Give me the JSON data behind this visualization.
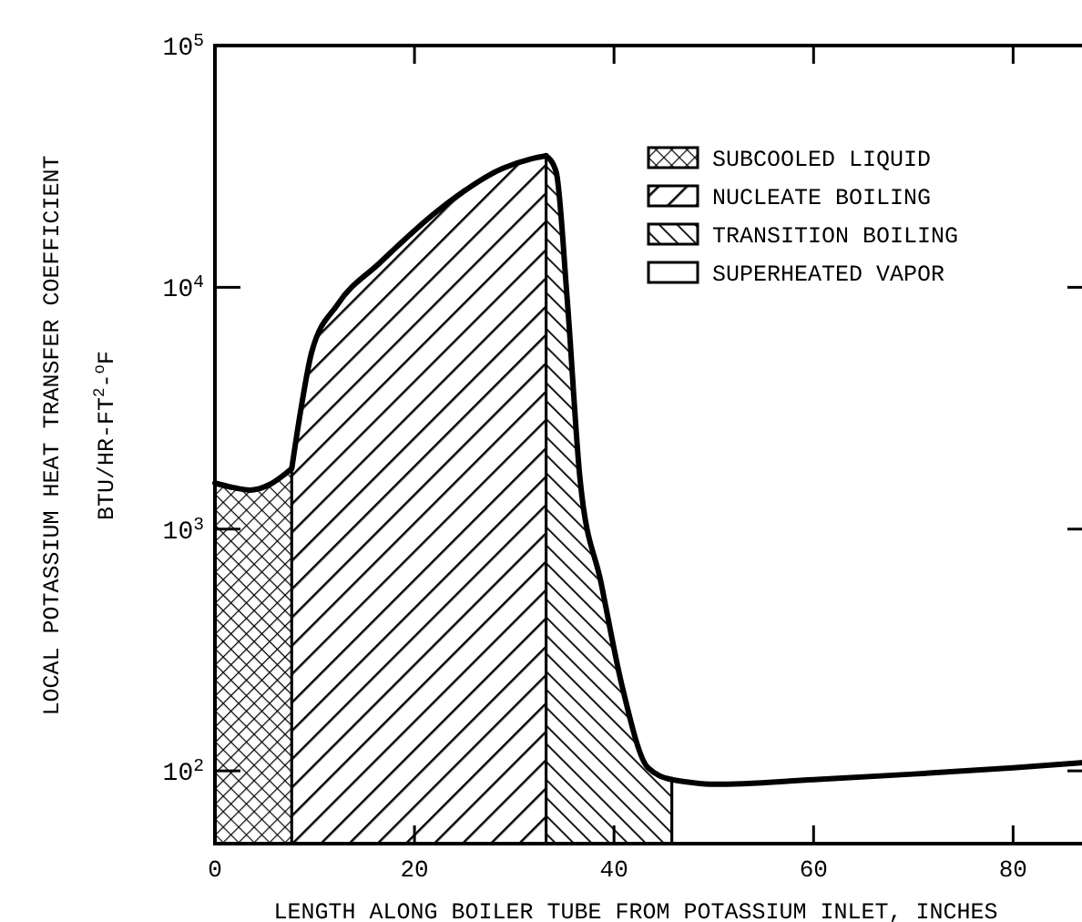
{
  "chart_data": {
    "type": "area",
    "xlabel": "LENGTH ALONG BOILER TUBE FROM POTASSIUM INLET, INCHES",
    "ylabel": "LOCAL POTASSIUM HEAT TRANSFER COEFFICIENT\nBTU/HR-FT$^{2}$-$^{o}$F",
    "log": "y",
    "xlim": [
      0,
      88
    ],
    "xticks": [
      0,
      20,
      40,
      60,
      80
    ],
    "ylim": [
      50,
      100000
    ],
    "yticks": [
      {
        "value": 100,
        "label": "10$^{2}$"
      },
      {
        "value": 1000,
        "label": "10$^{3}$"
      },
      {
        "value": 10000,
        "label": "10$^{4}$"
      },
      {
        "value": 100000,
        "label": "10$^{5}$"
      }
    ],
    "grid": false,
    "legend": "top right",
    "series": [
      {
        "name": "SUBCOOLED LIQUID",
        "color": "#000000",
        "x": [
          0,
          2,
          3.5,
          5.5,
          7.7
        ],
        "values": [
          1550,
          1480,
          1450,
          1530,
          1780
        ]
      },
      {
        "name": "NUCLEATE BOILING",
        "color": "#000000",
        "x": [
          7.7,
          8.6,
          9.7,
          12.3,
          16.5,
          22.5,
          28.8,
          31.7,
          33.2
        ],
        "values": [
          1780,
          3100,
          5400,
          8500,
          12600,
          21000,
          31000,
          34000,
          35000
        ]
      },
      {
        "name": "TRANSITION BOILING",
        "color": "#000000",
        "x": [
          33.2,
          34.2,
          35.3,
          36.6,
          38.7,
          40.8,
          43.4,
          45.8
        ],
        "values": [
          35000,
          30000,
          9000,
          1600,
          600,
          225,
          103,
          92
        ]
      },
      {
        "name": "SUPERHEATED VAPOR",
        "color": "#000000",
        "x": [
          45.8,
          50,
          60,
          70,
          80,
          88
        ],
        "values": [
          92,
          88,
          92,
          97,
          103,
          109
        ]
      }
    ]
  }
}
